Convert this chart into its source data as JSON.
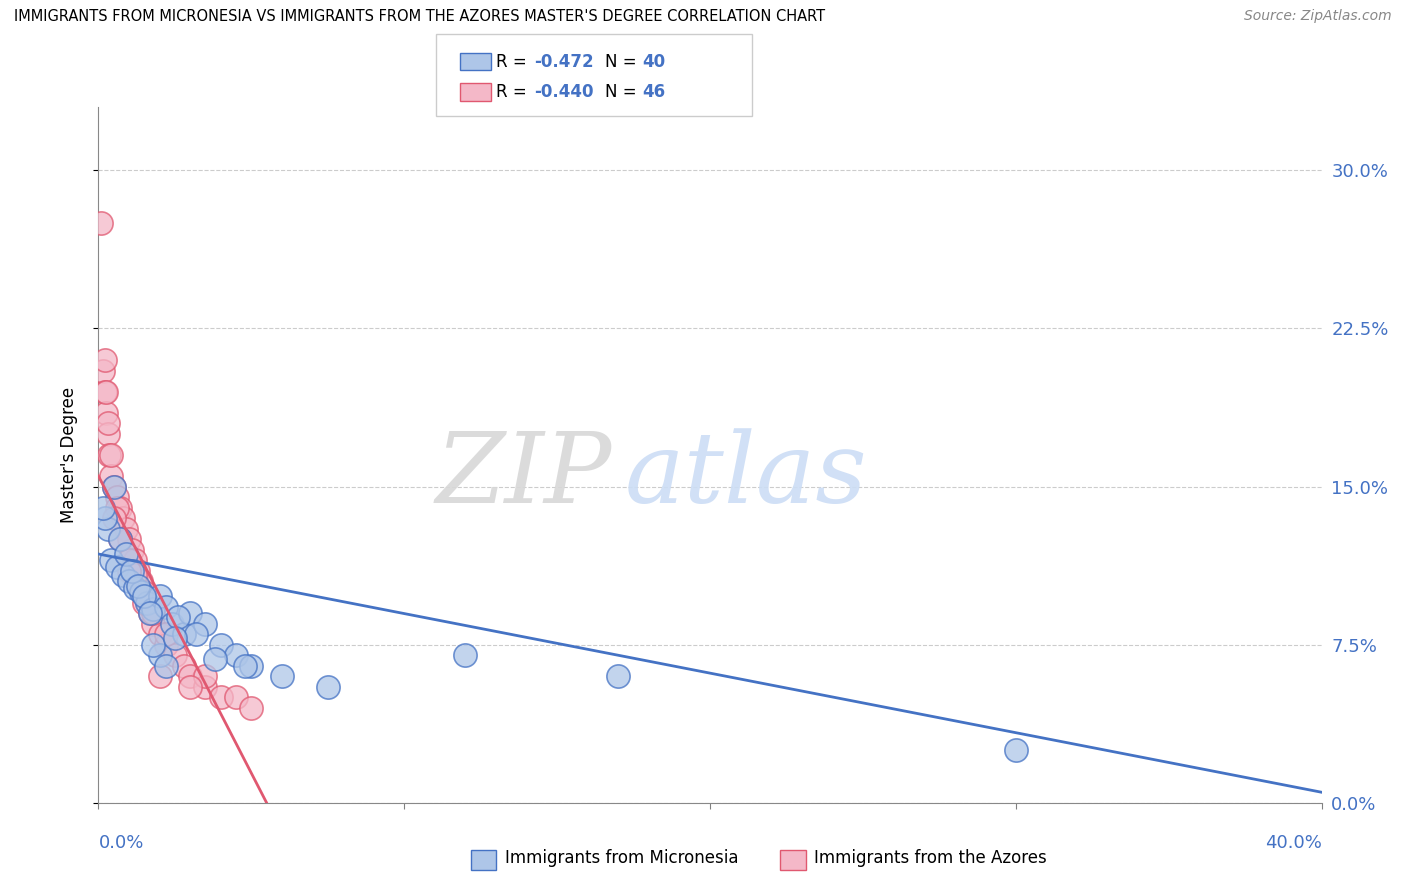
{
  "title": "IMMIGRANTS FROM MICRONESIA VS IMMIGRANTS FROM THE AZORES MASTER'S DEGREE CORRELATION CHART",
  "source": "Source: ZipAtlas.com",
  "ylabel": "Master's Degree",
  "ytick_values": [
    0.0,
    7.5,
    15.0,
    22.5,
    30.0
  ],
  "xlim": [
    0.0,
    40.0
  ],
  "ylim": [
    0.0,
    33.0
  ],
  "legend_r1": "-0.472",
  "legend_n1": "40",
  "legend_r2": "-0.440",
  "legend_n2": "46",
  "color_blue": "#aec6e8",
  "color_pink": "#f4b8c8",
  "line_color_blue": "#4472c4",
  "line_color_pink": "#e05870",
  "watermark_zip": "ZIP",
  "watermark_atlas": "atlas",
  "blue_points": [
    [
      0.4,
      11.5
    ],
    [
      0.6,
      11.2
    ],
    [
      0.8,
      10.8
    ],
    [
      1.0,
      10.5
    ],
    [
      1.2,
      10.2
    ],
    [
      1.4,
      10.0
    ],
    [
      0.3,
      13.0
    ],
    [
      0.7,
      12.5
    ],
    [
      0.9,
      11.8
    ],
    [
      1.1,
      11.0
    ],
    [
      1.6,
      9.5
    ],
    [
      1.8,
      9.2
    ],
    [
      2.0,
      9.8
    ],
    [
      2.2,
      9.3
    ],
    [
      0.5,
      15.0
    ],
    [
      1.3,
      10.3
    ],
    [
      1.5,
      9.8
    ],
    [
      1.7,
      9.0
    ],
    [
      2.4,
      8.5
    ],
    [
      2.8,
      8.0
    ],
    [
      3.0,
      9.0
    ],
    [
      3.5,
      8.5
    ],
    [
      4.0,
      7.5
    ],
    [
      2.6,
      8.8
    ],
    [
      3.2,
      8.0
    ],
    [
      4.5,
      7.0
    ],
    [
      5.0,
      6.5
    ],
    [
      6.0,
      6.0
    ],
    [
      2.0,
      7.0
    ],
    [
      1.8,
      7.5
    ],
    [
      2.5,
      7.8
    ],
    [
      3.8,
      6.8
    ],
    [
      12.0,
      7.0
    ],
    [
      17.0,
      6.0
    ],
    [
      30.0,
      2.5
    ],
    [
      0.2,
      13.5
    ],
    [
      0.15,
      14.0
    ],
    [
      4.8,
      6.5
    ],
    [
      7.5,
      5.5
    ],
    [
      2.2,
      6.5
    ]
  ],
  "pink_points": [
    [
      0.1,
      27.5
    ],
    [
      0.15,
      20.5
    ],
    [
      0.2,
      19.5
    ],
    [
      0.25,
      18.5
    ],
    [
      0.3,
      17.5
    ],
    [
      0.35,
      16.5
    ],
    [
      0.4,
      15.5
    ],
    [
      0.5,
      15.0
    ],
    [
      0.6,
      14.5
    ],
    [
      0.7,
      14.0
    ],
    [
      0.8,
      13.5
    ],
    [
      0.9,
      13.0
    ],
    [
      1.0,
      12.5
    ],
    [
      1.1,
      12.0
    ],
    [
      1.2,
      11.5
    ],
    [
      1.3,
      11.0
    ],
    [
      1.4,
      10.5
    ],
    [
      1.5,
      10.0
    ],
    [
      1.6,
      9.5
    ],
    [
      1.7,
      9.0
    ],
    [
      1.8,
      8.5
    ],
    [
      2.0,
      8.0
    ],
    [
      2.2,
      7.5
    ],
    [
      2.5,
      7.0
    ],
    [
      2.8,
      6.5
    ],
    [
      3.0,
      6.0
    ],
    [
      3.5,
      5.5
    ],
    [
      4.0,
      5.0
    ],
    [
      0.4,
      16.5
    ],
    [
      0.6,
      14.0
    ],
    [
      1.0,
      11.5
    ],
    [
      1.2,
      10.8
    ],
    [
      1.8,
      9.0
    ],
    [
      2.2,
      8.0
    ],
    [
      3.5,
      6.0
    ],
    [
      0.2,
      21.0
    ],
    [
      0.25,
      19.5
    ],
    [
      0.5,
      13.5
    ],
    [
      0.7,
      12.5
    ],
    [
      4.5,
      5.0
    ],
    [
      2.0,
      6.0
    ],
    [
      0.3,
      18.0
    ],
    [
      1.5,
      9.5
    ],
    [
      1.0,
      11.0
    ],
    [
      3.0,
      5.5
    ],
    [
      5.0,
      4.5
    ]
  ],
  "blue_line_x": [
    0.0,
    40.0
  ],
  "blue_line_y": [
    11.8,
    0.5
  ],
  "pink_line_x": [
    0.0,
    5.5
  ],
  "pink_line_y": [
    15.5,
    0.0
  ]
}
